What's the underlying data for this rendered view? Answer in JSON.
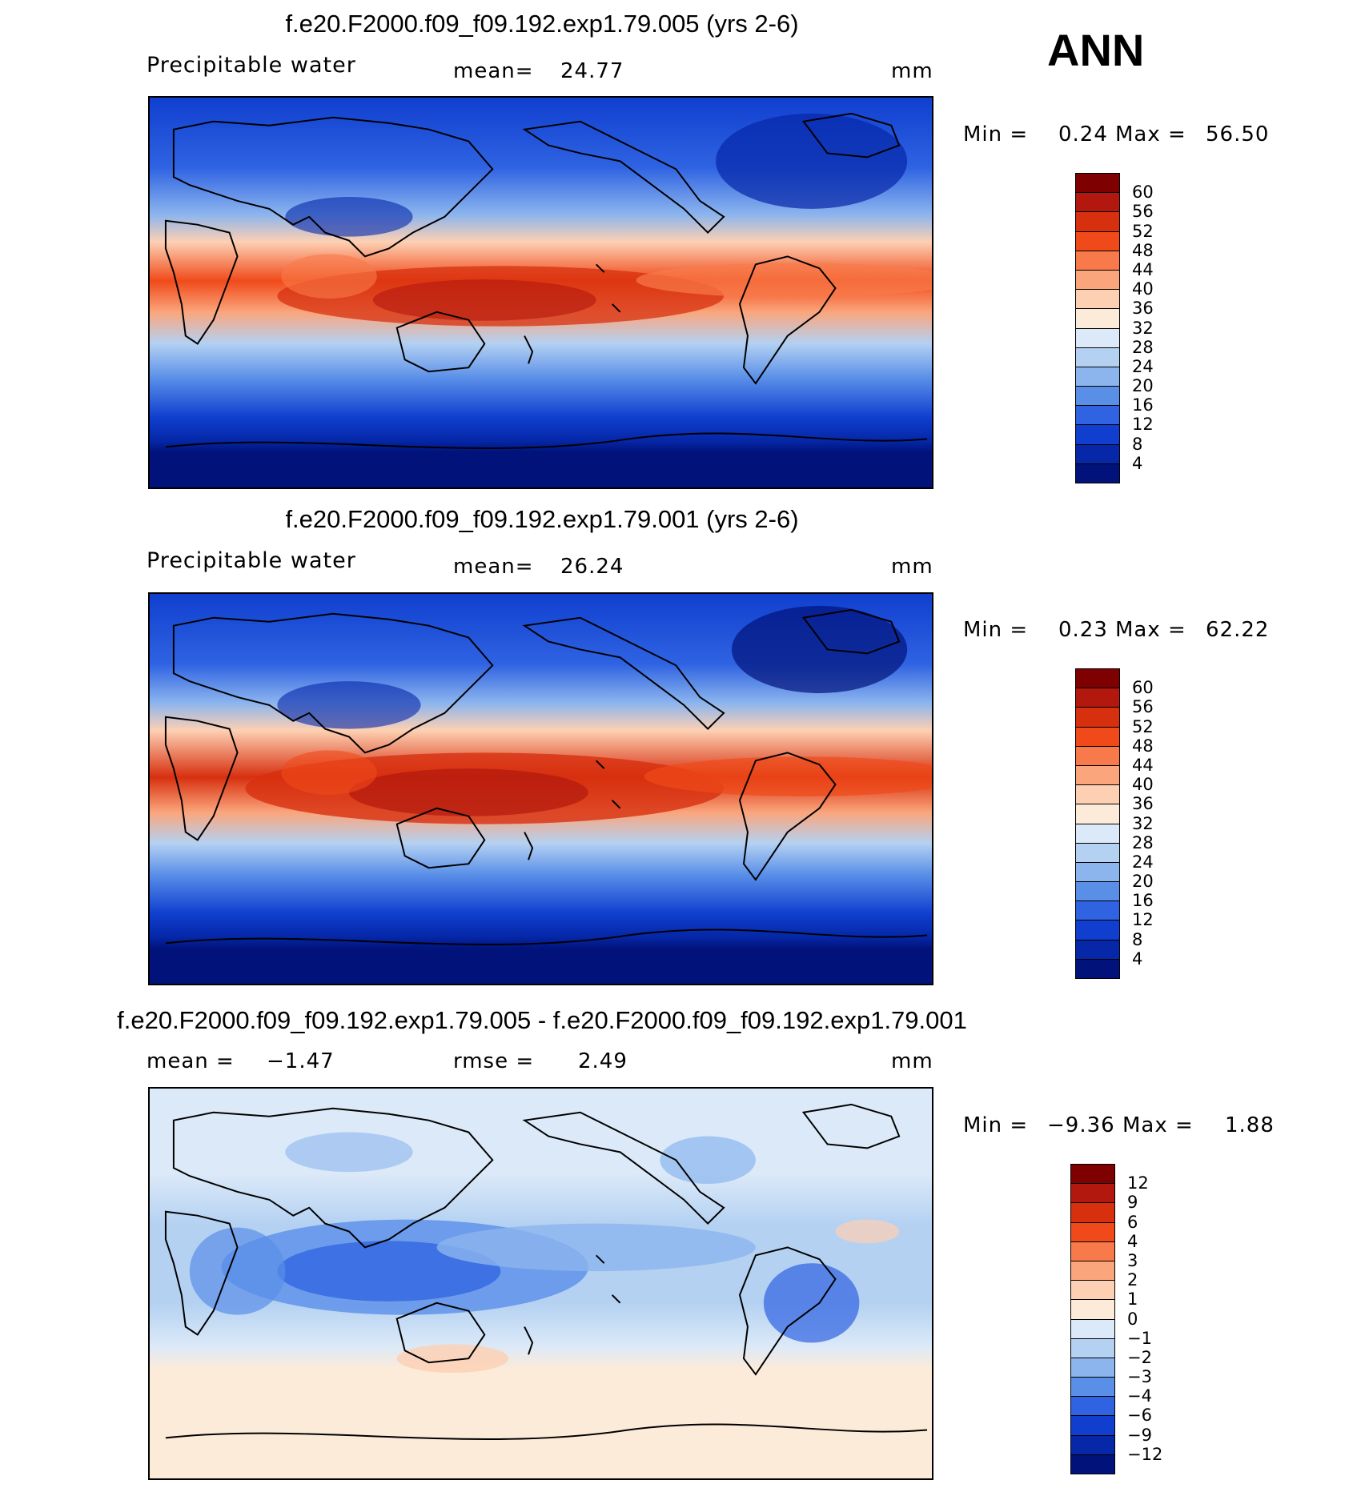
{
  "season": "ANN",
  "panels": [
    {
      "id": "test",
      "title": "f.e20.F2000.f09_f09.192.exp1.79.005 (yrs 2-6)",
      "variable": "Precipitable water",
      "stat_label": "mean=",
      "stat_value": "24.77",
      "units": "mm",
      "min_label": "Min =",
      "min_value": "0.24",
      "max_label": "Max =",
      "max_value": "56.50",
      "colorbar": {
        "ticks": [
          "60",
          "56",
          "52",
          "48",
          "44",
          "40",
          "36",
          "32",
          "28",
          "24",
          "20",
          "16",
          "12",
          "8",
          "4"
        ],
        "colors": [
          "#7f0000",
          "#b2180e",
          "#d7300f",
          "#f04a1a",
          "#f87a4a",
          "#fba57c",
          "#fdd0b3",
          "#fdebd9",
          "#dbe9f8",
          "#b4d1f2",
          "#8cb5ee",
          "#5a8fe8",
          "#2f63e2",
          "#103fcf",
          "#0527a8",
          "#01137a"
        ]
      },
      "chart_data": {
        "type": "heatmap",
        "title": "f.e20.F2000.f09_f09.192.exp1.79.005 (yrs 2-6)",
        "variable": "Precipitable water",
        "units": "mm",
        "mean": 24.77,
        "min": 0.24,
        "max": 56.5,
        "contour_levels": [
          4,
          8,
          12,
          16,
          20,
          24,
          28,
          32,
          36,
          40,
          44,
          48,
          52,
          56,
          60
        ]
      }
    },
    {
      "id": "control",
      "title": "f.e20.F2000.f09_f09.192.exp1.79.001 (yrs 2-6)",
      "variable": "Precipitable water",
      "stat_label": "mean=",
      "stat_value": "26.24",
      "units": "mm",
      "min_label": "Min =",
      "min_value": "0.23",
      "max_label": "Max =",
      "max_value": "62.22",
      "colorbar": {
        "ticks": [
          "60",
          "56",
          "52",
          "48",
          "44",
          "40",
          "36",
          "32",
          "28",
          "24",
          "20",
          "16",
          "12",
          "8",
          "4"
        ],
        "colors": [
          "#7f0000",
          "#b2180e",
          "#d7300f",
          "#f04a1a",
          "#f87a4a",
          "#fba57c",
          "#fdd0b3",
          "#fdebd9",
          "#dbe9f8",
          "#b4d1f2",
          "#8cb5ee",
          "#5a8fe8",
          "#2f63e2",
          "#103fcf",
          "#0527a8",
          "#01137a"
        ]
      },
      "chart_data": {
        "type": "heatmap",
        "title": "f.e20.F2000.f09_f09.192.exp1.79.001 (yrs 2-6)",
        "variable": "Precipitable water",
        "units": "mm",
        "mean": 26.24,
        "min": 0.23,
        "max": 62.22,
        "contour_levels": [
          4,
          8,
          12,
          16,
          20,
          24,
          28,
          32,
          36,
          40,
          44,
          48,
          52,
          56,
          60
        ]
      }
    },
    {
      "id": "diff",
      "title": "f.e20.F2000.f09_f09.192.exp1.79.005 - f.e20.F2000.f09_f09.192.exp1.79.001",
      "mean_label": "mean =",
      "mean_value": "−1.47",
      "rmse_label": "rmse =",
      "rmse_value": "2.49",
      "units": "mm",
      "min_label": "Min =",
      "min_value": "−9.36",
      "max_label": "Max =",
      "max_value": "1.88",
      "colorbar": {
        "ticks": [
          "12",
          "9",
          "6",
          "4",
          "3",
          "2",
          "1",
          "0",
          "−1",
          "−2",
          "−3",
          "−4",
          "−6",
          "−9",
          "−12"
        ],
        "colors": [
          "#7f0000",
          "#b2180e",
          "#d7300f",
          "#f04a1a",
          "#f87a4a",
          "#fba57c",
          "#fdd0b3",
          "#fdebd9",
          "#dbe9f8",
          "#b4d1f2",
          "#8cb5ee",
          "#5a8fe8",
          "#2f63e2",
          "#103fcf",
          "#0527a8",
          "#01137a"
        ]
      },
      "chart_data": {
        "type": "heatmap",
        "title": "f.e20.F2000.f09_f09.192.exp1.79.005 - f.e20.F2000.f09_f09.192.exp1.79.001",
        "units": "mm",
        "mean": -1.47,
        "rmse": 2.49,
        "min": -9.36,
        "max": 1.88,
        "contour_levels": [
          -12,
          -9,
          -6,
          -4,
          -3,
          -2,
          -1,
          0,
          1,
          2,
          3,
          4,
          6,
          9,
          12
        ]
      }
    }
  ]
}
